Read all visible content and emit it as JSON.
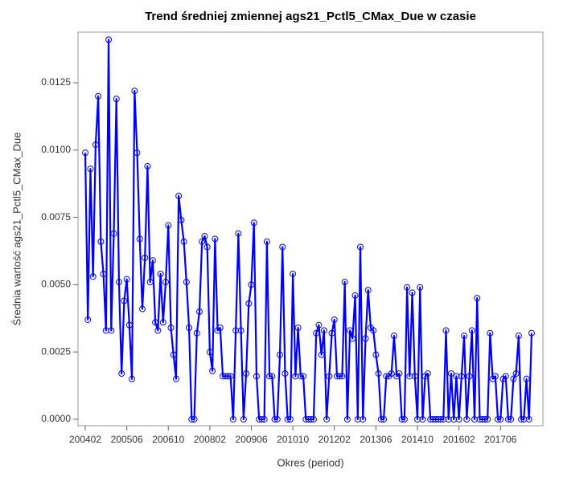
{
  "chart_data": {
    "type": "line",
    "title": "Trend średniej zmiennej ags21_Pctl5_CMax_Due w czasie",
    "x_label": "Okres (period)",
    "y_label": "Średnia wartość ags21_Pctl5_CMax_Due",
    "color": "#0000ff",
    "markers": true,
    "categories": [
      "200402",
      null,
      null,
      null,
      null,
      null,
      null,
      null,
      null,
      null,
      null,
      null,
      null,
      null,
      null,
      null,
      "200506",
      null,
      null,
      null,
      null,
      null,
      null,
      null,
      null,
      null,
      null,
      null,
      null,
      null,
      null,
      null,
      "200610",
      null,
      null,
      null,
      null,
      null,
      null,
      null,
      null,
      null,
      null,
      null,
      null,
      null,
      null,
      null,
      "200802",
      null,
      null,
      null,
      null,
      null,
      null,
      null,
      null,
      null,
      null,
      null,
      null,
      null,
      null,
      null,
      "200906",
      null,
      null,
      null,
      null,
      null,
      null,
      null,
      null,
      null,
      null,
      null,
      null,
      null,
      null,
      null,
      "201010",
      null,
      null,
      null,
      null,
      null,
      null,
      null,
      null,
      null,
      null,
      null,
      null,
      null,
      null,
      null,
      "201202",
      null,
      null,
      null,
      null,
      null,
      null,
      null,
      null,
      null,
      null,
      null,
      null,
      null,
      null,
      null,
      "201306",
      null,
      null,
      null,
      null,
      null,
      null,
      null,
      null,
      null,
      null,
      null,
      null,
      null,
      null,
      null,
      "201410",
      null,
      null,
      null,
      null,
      null,
      null,
      null,
      null,
      null,
      null,
      null,
      null,
      null,
      null,
      null,
      "201602",
      null,
      null,
      null,
      null,
      null,
      null,
      null,
      null,
      null,
      null,
      null,
      null,
      null,
      null,
      null,
      "201706",
      null,
      null,
      null,
      null,
      null,
      null,
      null,
      null,
      null,
      null,
      null,
      null
    ],
    "values": [
      0.0099,
      0.0037,
      0.0093,
      0.0053,
      0.0102,
      0.012,
      0.0066,
      0.0054,
      0.0033,
      0.0141,
      0.0033,
      0.0069,
      0.0119,
      0.0051,
      0.0017,
      0.0044,
      0.0052,
      0.0035,
      0.0015,
      0.0122,
      0.0099,
      0.0067,
      0.0041,
      0.006,
      0.0094,
      0.0051,
      0.0059,
      0.0036,
      0.0033,
      0.0054,
      0.0036,
      0.0051,
      0.0072,
      0.0034,
      0.0024,
      0.0015,
      0.0083,
      0.0074,
      0.0066,
      0.0051,
      0.0034,
      0,
      0,
      0.0032,
      0.004,
      0.0066,
      0.0068,
      0.0064,
      0.0025,
      0.0018,
      0.0067,
      0.0033,
      0.0034,
      0.0016,
      0.0016,
      0.0016,
      0.0016,
      0,
      0.0033,
      0.0069,
      0.0033,
      0,
      0.0017,
      0.0043,
      0.005,
      0.0073,
      0.0016,
      0,
      0,
      0,
      0.0066,
      0.0016,
      0.0016,
      0,
      0,
      0.0024,
      0.0064,
      0.0017,
      0,
      0,
      0.0054,
      0.0016,
      0.0034,
      0.0016,
      0.0016,
      0,
      0,
      0,
      0,
      0.0032,
      0.0035,
      0.0024,
      0.0033,
      0,
      0.0016,
      0.0032,
      0.0037,
      0.0016,
      0.0016,
      0.0016,
      0.0051,
      0,
      0.0033,
      0.003,
      0.0046,
      0,
      0.0064,
      0,
      0.003,
      0.0048,
      0.0034,
      0.0033,
      0.0024,
      0.0017,
      0,
      0,
      0.0016,
      0.0016,
      0.0017,
      0.0031,
      0.0016,
      0.0017,
      0,
      0,
      0.0049,
      0.0016,
      0.0047,
      0.0016,
      0,
      0.0049,
      0,
      0.0016,
      0.0017,
      0,
      0,
      0,
      0,
      0,
      0,
      0.0033,
      0,
      0.0017,
      0,
      0.0016,
      0,
      0.0016,
      0.0031,
      0,
      0.0016,
      0.0033,
      0,
      0.0045,
      0,
      0,
      0,
      0,
      0.0032,
      0.0015,
      0.0016,
      0,
      0,
      0.0015,
      0.0016,
      0,
      0,
      0.0015,
      0.0017,
      0.0031,
      0,
      0,
      0.0015,
      0,
      0.0032
    ],
    "ylim": [
      -0.00024,
      0.01438
    ],
    "yticks": [
      {
        "value": 0,
        "label": "0.0000"
      },
      {
        "value": 0.0025,
        "label": "0.0025"
      },
      {
        "value": 0.005,
        "label": "0.0050"
      },
      {
        "value": 0.0075,
        "label": "0.0075"
      },
      {
        "value": 0.01,
        "label": "0.0100"
      },
      {
        "value": 0.0125,
        "label": "0.0125"
      }
    ]
  }
}
